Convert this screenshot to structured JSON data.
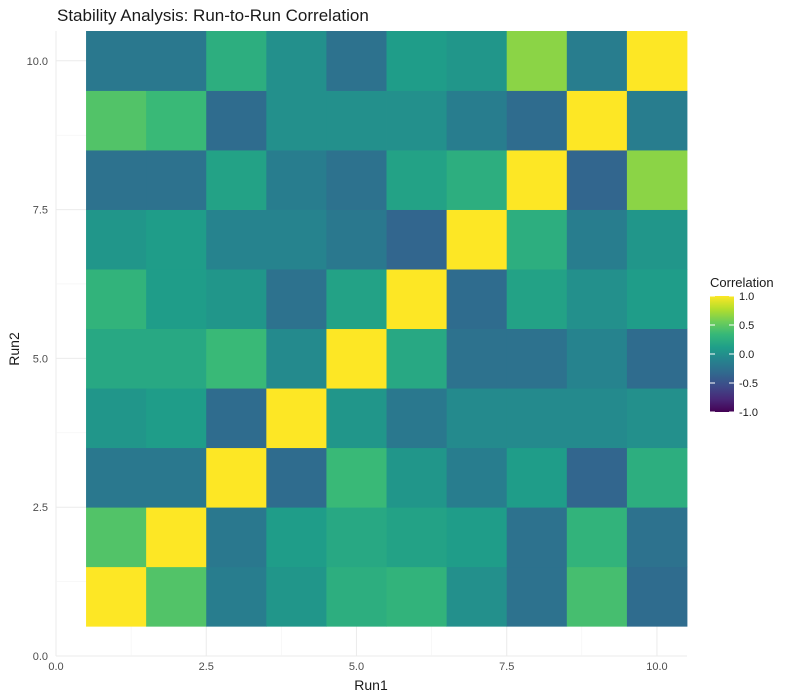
{
  "chart_data": {
    "type": "heatmap",
    "title": "Stability Analysis: Run-to-Run Correlation",
    "xlabel": "Run1",
    "ylabel": "Run2",
    "xlim": [
      0,
      10.5
    ],
    "ylim": [
      0,
      10.5
    ],
    "x_ticks": [
      0,
      2.5,
      5,
      7.5,
      10
    ],
    "y_ticks": [
      0,
      2.5,
      5,
      7.5,
      10
    ],
    "x_tick_labels": [
      "0.0",
      "2.5",
      "5.0",
      "7.5",
      "10.0"
    ],
    "y_tick_labels": [
      "0.0",
      "2.5",
      "5.0",
      "7.5",
      "10.0"
    ],
    "x": [
      1,
      2,
      3,
      4,
      5,
      6,
      7,
      8,
      9,
      10
    ],
    "y": [
      1,
      2,
      3,
      4,
      5,
      6,
      7,
      8,
      9,
      10
    ],
    "matrix_rows_by_run2": [
      [
        1.0,
        0.45,
        -0.15,
        0.05,
        0.25,
        0.3,
        0.0,
        -0.25,
        0.4,
        -0.3
      ],
      [
        0.45,
        1.0,
        -0.2,
        0.1,
        0.2,
        0.15,
        0.1,
        -0.25,
        0.3,
        -0.25
      ],
      [
        -0.2,
        -0.2,
        1.0,
        -0.3,
        0.35,
        0.05,
        -0.15,
        0.1,
        -0.35,
        0.25
      ],
      [
        0.05,
        0.1,
        -0.3,
        1.0,
        0.05,
        -0.2,
        -0.05,
        -0.05,
        -0.05,
        0.0
      ],
      [
        0.2,
        0.2,
        0.35,
        -0.05,
        1.0,
        0.2,
        -0.25,
        -0.25,
        -0.1,
        -0.3
      ],
      [
        0.3,
        0.1,
        0.05,
        -0.25,
        0.15,
        1.0,
        -0.3,
        0.15,
        0.0,
        0.1
      ],
      [
        0.05,
        0.1,
        -0.1,
        -0.1,
        -0.2,
        -0.35,
        1.0,
        0.25,
        -0.15,
        0.05
      ],
      [
        -0.25,
        -0.25,
        0.15,
        -0.15,
        -0.25,
        0.15,
        0.25,
        1.0,
        -0.35,
        0.65
      ],
      [
        0.45,
        0.35,
        -0.3,
        0.0,
        0.0,
        0.0,
        -0.15,
        -0.3,
        1.0,
        -0.15
      ],
      [
        -0.2,
        -0.2,
        0.25,
        0.0,
        -0.25,
        0.1,
        0.05,
        0.65,
        -0.15,
        1.0
      ]
    ],
    "legend": {
      "title": "Correlation",
      "placement": "right",
      "range": [
        -1,
        1
      ],
      "ticks": [
        1.0,
        0.5,
        0.0,
        -0.5,
        -1.0
      ],
      "tick_labels": [
        "1.0",
        "0.5",
        "0.0",
        "-0.5",
        "-1.0"
      ]
    },
    "colormap": "viridis",
    "colormap_stops": [
      "#440154",
      "#482878",
      "#3E4A89",
      "#31688E",
      "#26828E",
      "#1F9E89",
      "#35B779",
      "#6DCD59",
      "#B4DE2C",
      "#FDE725"
    ],
    "grid": true
  }
}
